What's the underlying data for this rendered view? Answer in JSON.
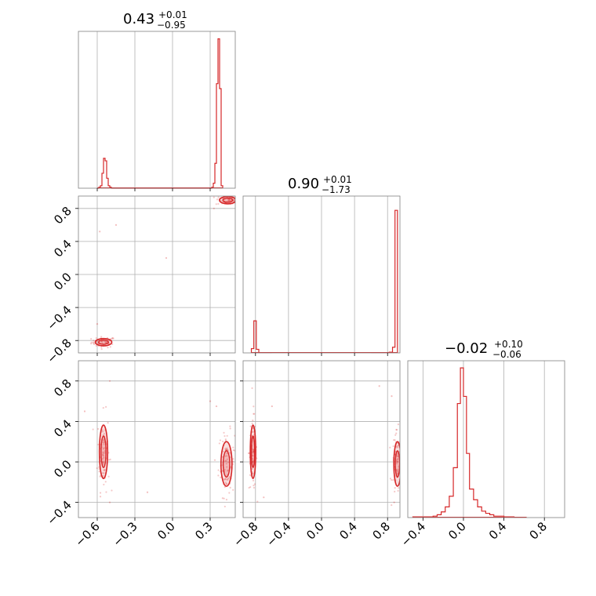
{
  "colors": {
    "accent": "#d62728",
    "grid": "#b0b0b0",
    "frame": "#808080",
    "scatter": "#d62728"
  },
  "chart_data": {
    "type": "corner",
    "grid": true,
    "panels": [
      {
        "id": "hist-1",
        "type": "histogram",
        "title": {
          "value": "0.43",
          "plus": "+0.01",
          "minus": "−0.95"
        },
        "xlim": [
          -0.75,
          0.5
        ],
        "bins_start": -0.6,
        "bin_width": 0.0125,
        "counts": [
          0,
          0.02,
          0.05,
          0.3,
          0.6,
          0.55,
          0.2,
          0.05,
          0.02,
          0,
          0,
          0,
          0,
          0,
          0,
          0,
          0,
          0,
          0,
          0,
          0,
          0,
          0,
          0,
          0,
          0,
          0,
          0,
          0,
          0,
          0,
          0,
          0,
          0,
          0,
          0,
          0,
          0,
          0,
          0,
          0,
          0,
          0,
          0,
          0,
          0,
          0,
          0,
          0,
          0,
          0,
          0,
          0,
          0,
          0,
          0,
          0,
          0,
          0,
          0,
          0,
          0,
          0,
          0,
          0,
          0,
          0,
          0,
          0,
          0,
          0,
          0,
          0,
          0.02,
          0.1,
          0.5,
          2.1,
          3.0,
          2.0,
          0.05
        ],
        "ymax": 3.15
      },
      {
        "id": "hist-2",
        "type": "histogram",
        "title": {
          "value": "0.90",
          "plus": "+0.01",
          "minus": "−1.73"
        },
        "xlim": [
          -0.95,
          0.95
        ],
        "bins": [
          [
            -0.85,
            -0.82,
            0.06
          ],
          [
            -0.82,
            -0.79,
            0.45
          ],
          [
            -0.79,
            -0.76,
            0.05
          ],
          [
            -0.76,
            -0.6,
            0.005
          ],
          [
            0.6,
            0.82,
            0.005
          ],
          [
            0.82,
            0.86,
            0.01
          ],
          [
            0.86,
            0.89,
            0.08
          ],
          [
            0.89,
            0.92,
            2.0
          ]
        ],
        "ymax": 2.2
      },
      {
        "id": "hist-3",
        "type": "histogram",
        "title": {
          "value": "−0.02",
          "plus": "+0.10",
          "minus": "−0.06"
        },
        "xlim": [
          -0.55,
          1.0
        ],
        "bins": [
          [
            -0.5,
            -0.4,
            0.01
          ],
          [
            -0.4,
            -0.3,
            0.01
          ],
          [
            -0.3,
            -0.26,
            0.02
          ],
          [
            -0.26,
            -0.22,
            0.04
          ],
          [
            -0.22,
            -0.18,
            0.08
          ],
          [
            -0.18,
            -0.14,
            0.15
          ],
          [
            -0.14,
            -0.1,
            0.3
          ],
          [
            -0.1,
            -0.06,
            0.7
          ],
          [
            -0.06,
            -0.03,
            1.6
          ],
          [
            -0.03,
            0.0,
            2.1
          ],
          [
            0.0,
            0.03,
            1.7
          ],
          [
            0.03,
            0.06,
            0.9
          ],
          [
            0.06,
            0.1,
            0.4
          ],
          [
            0.1,
            0.14,
            0.25
          ],
          [
            0.14,
            0.18,
            0.15
          ],
          [
            0.18,
            0.22,
            0.09
          ],
          [
            0.22,
            0.26,
            0.06
          ],
          [
            0.26,
            0.3,
            0.04
          ],
          [
            0.3,
            0.4,
            0.02
          ],
          [
            0.4,
            0.5,
            0.01
          ],
          [
            0.5,
            0.62,
            0.005
          ]
        ],
        "ymax": 2.2
      },
      {
        "id": "scatter-2-1",
        "type": "contour",
        "xlim": [
          -0.75,
          0.5
        ],
        "ylim": [
          -0.95,
          0.95
        ],
        "clusters": [
          {
            "cx": -0.55,
            "cy": -0.82,
            "sx": 0.03,
            "sy": 0.02,
            "n": 60
          },
          {
            "cx": 0.44,
            "cy": 0.9,
            "sx": 0.03,
            "sy": 0.02,
            "n": 70
          }
        ],
        "outliers": [
          [
            -0.58,
            0.52
          ],
          [
            -0.45,
            0.6
          ],
          [
            -0.6,
            -0.6
          ],
          [
            -0.05,
            0.2
          ],
          [
            0.33,
            0.8
          ]
        ]
      },
      {
        "id": "scatter-3-1",
        "type": "contour",
        "xlim": [
          -0.75,
          0.5
        ],
        "ylim": [
          -0.55,
          1.0
        ],
        "clusters": [
          {
            "cx": -0.55,
            "cy": 0.1,
            "sx": 0.015,
            "sy": 0.12,
            "n": 80
          },
          {
            "cx": 0.43,
            "cy": -0.02,
            "sx": 0.02,
            "sy": 0.1,
            "n": 90
          }
        ],
        "outliers": [
          [
            -0.7,
            0.5
          ],
          [
            -0.5,
            -0.4
          ],
          [
            0.3,
            0.6
          ],
          [
            0.35,
            0.55
          ],
          [
            -0.2,
            -0.3
          ],
          [
            -0.5,
            0.8
          ]
        ]
      },
      {
        "id": "scatter-3-2",
        "type": "contour",
        "xlim": [
          -0.95,
          0.95
        ],
        "ylim": [
          -0.55,
          1.0
        ],
        "clusters": [
          {
            "cx": -0.83,
            "cy": 0.1,
            "sx": 0.015,
            "sy": 0.12,
            "n": 80
          },
          {
            "cx": 0.92,
            "cy": -0.02,
            "sx": 0.02,
            "sy": 0.1,
            "n": 90
          }
        ],
        "outliers": [
          [
            -0.6,
            0.55
          ],
          [
            0.7,
            0.75
          ],
          [
            0.85,
            0.65
          ],
          [
            -0.7,
            -0.35
          ],
          [
            0.88,
            -0.4
          ]
        ]
      }
    ],
    "x_ticks": {
      "col1": [
        "−0.6",
        "−0.3",
        "0.0",
        "0.3"
      ],
      "col2": [
        "−0.8",
        "−0.4",
        "0.0",
        "0.4",
        "0.8"
      ],
      "col3": [
        "−0.4",
        "0.0",
        "0.4",
        "0.8"
      ]
    },
    "y_ticks": {
      "row2": [
        "0.8",
        "0.4",
        "0.0",
        "−0.4",
        "−0.8"
      ],
      "row3": [
        "0.8",
        "0.4",
        "0.0",
        "−0.4"
      ]
    }
  }
}
